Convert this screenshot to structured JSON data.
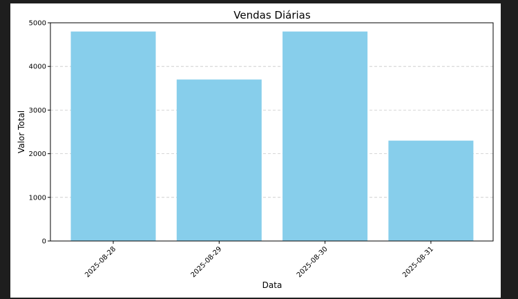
{
  "chart_data": {
    "type": "bar",
    "title": "Vendas Diárias",
    "xlabel": "Data",
    "ylabel": "Valor Total",
    "categories": [
      "2025-08-28",
      "2025-08-29",
      "2025-08-30",
      "2025-08-31"
    ],
    "values": [
      4800,
      3700,
      4800,
      2300
    ],
    "ylim": [
      0,
      5000
    ],
    "yticks": [
      0,
      1000,
      2000,
      3000,
      4000,
      5000
    ],
    "grid": "y-dashed",
    "legend": "none",
    "colors": {
      "bar": "#87ceeb",
      "grid": "#c8c8c8",
      "axis": "#000000",
      "background": "#ffffff"
    }
  }
}
